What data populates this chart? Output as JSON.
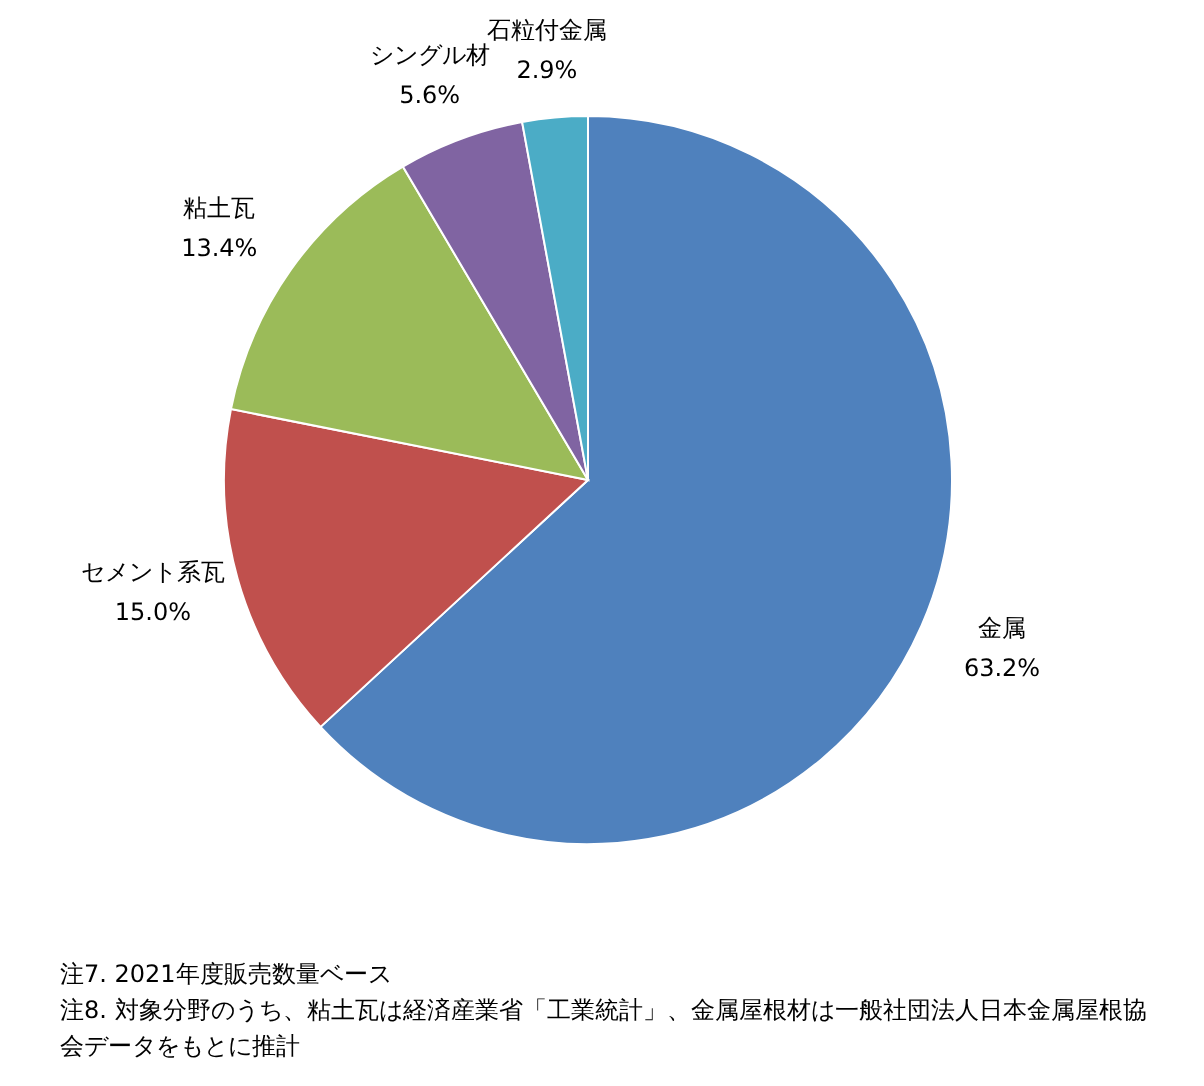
{
  "chart_data": {
    "type": "pie",
    "categories": [
      "金属",
      "セメント系瓦",
      "粘土瓦",
      "シングル材",
      "石粒付金属"
    ],
    "values": [
      63.2,
      15.0,
      13.4,
      5.6,
      2.9
    ],
    "colors": [
      "#4f81bd",
      "#c0504d",
      "#9bbb59",
      "#8064a2",
      "#4bacc6"
    ],
    "value_labels": [
      "63.2%",
      "15.0%",
      "13.4%",
      "5.6%",
      "2.9%"
    ],
    "annotations": [
      "注7. 2021年度販売数量ベース",
      "注8. 対象分野のうち、粘土瓦は経済産業省「工業統計」、金属屋根材は一般社団法人日本金属屋根協会データをもとに推計"
    ]
  }
}
